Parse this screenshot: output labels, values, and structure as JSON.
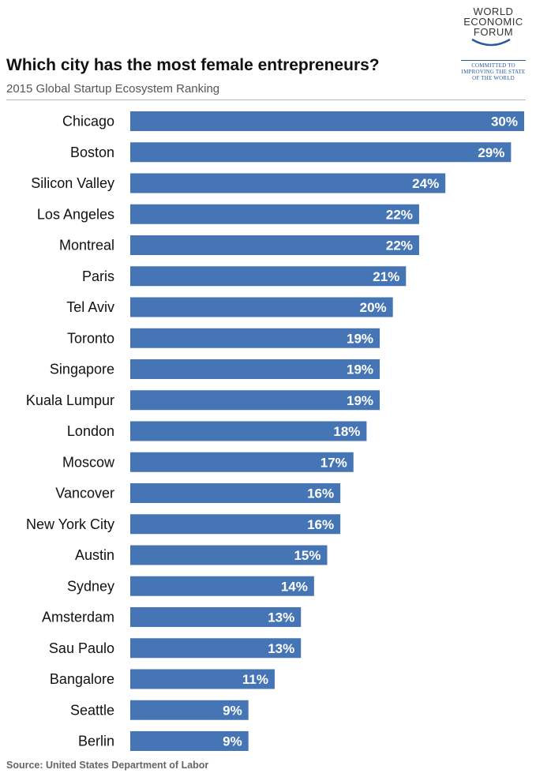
{
  "header": {
    "title": "Which city has the most female entrepreneurs?",
    "subtitle": "2015 Global Startup Ecosystem Ranking"
  },
  "logo": {
    "lines": [
      "WORLD",
      "ECONOMIC",
      "FORUM"
    ],
    "tagline": [
      "COMMITTED TO",
      "IMPROVING THE STATE",
      "OF THE WORLD"
    ]
  },
  "source": "Source: United States Department of Labor",
  "colors": {
    "bar": "#4575b4",
    "value_text": "#ffffff",
    "logo_blue": "#2c5a9e"
  },
  "chart_data": {
    "type": "bar",
    "orientation": "horizontal",
    "title": "Which city has the most female entrepreneurs?",
    "subtitle": "2015 Global Startup Ecosystem Ranking",
    "categories": [
      "Chicago",
      "Boston",
      "Silicon Valley",
      "Los Angeles",
      "Montreal",
      "Paris",
      "Tel Aviv",
      "Toronto",
      "Singapore",
      "Kuala Lumpur",
      "London",
      "Moscow",
      "Vancover",
      "New York City",
      "Austin",
      "Sydney",
      "Amsterdam",
      "Sau Paulo",
      "Bangalore",
      "Seattle",
      "Berlin"
    ],
    "values": [
      30,
      29,
      24,
      22,
      22,
      21,
      20,
      19,
      19,
      19,
      18,
      17,
      16,
      16,
      15,
      14,
      13,
      13,
      11,
      9,
      9
    ],
    "value_labels": [
      "30%",
      "29%",
      "24%",
      "22%",
      "22%",
      "21%",
      "20%",
      "19%",
      "19%",
      "19%",
      "18%",
      "17%",
      "16%",
      "16%",
      "15%",
      "14%",
      "13%",
      "13%",
      "11%",
      "9%",
      "9%"
    ],
    "xlim": [
      0,
      30
    ],
    "grid": false,
    "legend": "none",
    "xlabel": "",
    "ylabel": ""
  }
}
